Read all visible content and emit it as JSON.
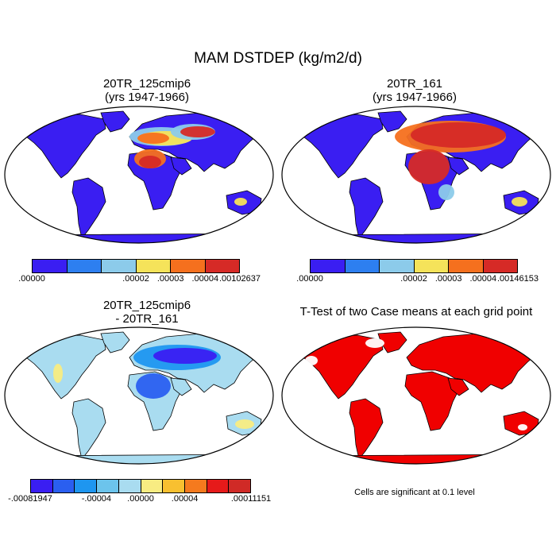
{
  "title": "MAM DSTDEP (kg/m2/d)",
  "panels": {
    "top_left": {
      "title_line1": "20TR_125cmip6",
      "title_line2": "(yrs 1947-1966)",
      "colorbar_labels": [
        ".00000",
        ".00002",
        ".00003",
        ".00004",
        ".00102637"
      ]
    },
    "top_right": {
      "title_line1": "20TR_161",
      "title_line2": "(yrs 1947-1966)",
      "colorbar_labels": [
        ".00000",
        ".00002",
        ".00003",
        ".00004",
        ".00146153"
      ]
    },
    "bottom_left": {
      "title_line1": "20TR_125cmip6",
      "title_line2": "- 20TR_161",
      "colorbar_labels": [
        "-.00081947",
        "-.00004",
        ".00000",
        ".00004",
        ".00011151"
      ]
    },
    "bottom_right": {
      "title": "T-Test of two Case means at each grid point",
      "footnote": "Cells are significant at 0.1 level"
    }
  },
  "colors": {
    "seq_scale": [
      "#3a1ef2",
      "#2d7ff0",
      "#8ccbea",
      "#f5e35a",
      "#f5701e",
      "#d62a26"
    ],
    "diff_scale": [
      "#3a1ef2",
      "#2a5ff0",
      "#1e96f0",
      "#6cc4ec",
      "#a9dcf0",
      "#f8ec82",
      "#f8c030",
      "#f57a1e",
      "#e61a1a",
      "#d02a26"
    ],
    "significant": "#f00000",
    "land_low": "#3a1ef2",
    "diff_background": "#a9dcf0"
  }
}
